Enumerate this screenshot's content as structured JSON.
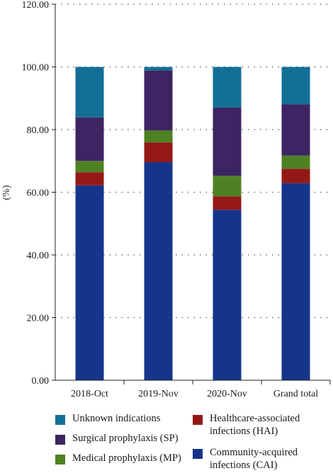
{
  "colors": {
    "unknown": "#136f96",
    "sp": "#3d2462",
    "mp": "#4e8123",
    "hai": "#941916",
    "cai": "#15358a"
  },
  "chart_data": {
    "type": "bar",
    "stacked": true,
    "categories": [
      "2018-Oct",
      "2019-Nov",
      "2020-Nov",
      "Grand total"
    ],
    "ylabel": "(%)",
    "ylim": [
      0,
      120
    ],
    "yticks": [
      "0.00",
      "20.00",
      "40.00",
      "60.00",
      "80.00",
      "100.00",
      "120.00"
    ],
    "grid": "dotted horizontal",
    "legend_position": "bottom",
    "series": [
      {
        "key": "cai",
        "values": [
          62.2,
          69.6,
          54.4,
          62.9
        ]
      },
      {
        "key": "hai",
        "values": [
          4.2,
          6.3,
          4.3,
          4.6
        ]
      },
      {
        "key": "mp",
        "values": [
          3.6,
          3.8,
          6.6,
          4.2
        ]
      },
      {
        "key": "sp",
        "values": [
          13.9,
          19.2,
          21.7,
          16.4
        ]
      },
      {
        "key": "unknown",
        "values": [
          16.1,
          1.1,
          13.0,
          11.9
        ]
      }
    ]
  },
  "legend": {
    "unknown": "Unknown indications",
    "sp": "Surgical prophylaxis (SP)",
    "mp": "Medical prophylaxis (MP)",
    "hai": "Healthcare-associated\ninfections (HAI)",
    "cai": "Community-acquired\ninfections (CAI)"
  }
}
